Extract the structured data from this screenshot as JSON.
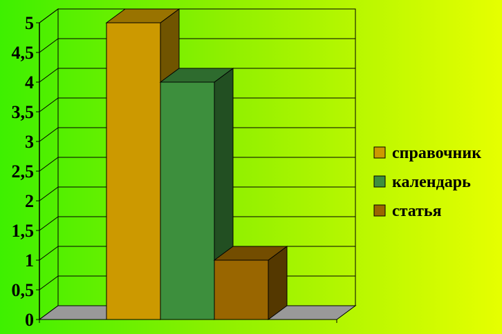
{
  "chart_data": {
    "type": "bar",
    "style": "3d-clustered",
    "categories": [
      ""
    ],
    "series": [
      {
        "name": "справочник",
        "values": [
          5
        ],
        "color": "#cc9900"
      },
      {
        "name": "календарь",
        "values": [
          4
        ],
        "color": "#3d8f3d"
      },
      {
        "name": "статья",
        "values": [
          1
        ],
        "color": "#996600"
      }
    ],
    "ylim": [
      0,
      5
    ],
    "yticks": [
      "0",
      "0,5",
      "1",
      "1,5",
      "2",
      "2,5",
      "3",
      "3,5",
      "4",
      "4,5",
      "5"
    ],
    "grid": true,
    "legend": "right",
    "floor_color": "#999999",
    "grid_color": "#000000"
  }
}
